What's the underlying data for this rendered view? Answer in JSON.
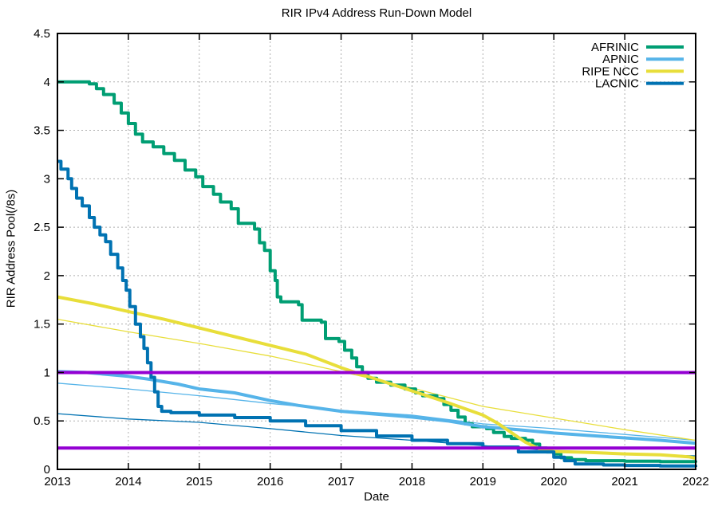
{
  "chart_data": {
    "type": "line",
    "title": "RIR IPv4 Address Run-Down Model",
    "xlabel": "Date",
    "ylabel": "RIR Address Pool(/8s)",
    "xlim": [
      2013,
      2022
    ],
    "ylim": [
      0,
      4.5
    ],
    "x_ticks": [
      2013,
      2014,
      2015,
      2016,
      2017,
      2018,
      2019,
      2020,
      2021,
      2022
    ],
    "y_ticks": [
      0,
      0.5,
      1,
      1.5,
      2,
      2.5,
      3,
      3.5,
      4,
      4.5
    ],
    "grid": true,
    "legend_position": "top-right-inside",
    "legend": [
      "AFRINIC",
      "APNIC",
      "RIPE NCC",
      "LACNIC"
    ],
    "colors": {
      "AFRINIC": "#009e73",
      "APNIC": "#56b4e9",
      "RIPE NCC": "#e8de3a",
      "LACNIC": "#0072b2",
      "threshold": "#9400d3",
      "grid": "#b0b0b0"
    },
    "reference_lines": [
      {
        "name": "threshold-upper",
        "y": 1.0,
        "color": "#9400d3"
      },
      {
        "name": "threshold-lower",
        "y": 0.22,
        "color": "#9400d3"
      }
    ],
    "series": [
      {
        "name": "AFRINIC",
        "role": "actual",
        "color": "#009e73",
        "width": 4,
        "step": true,
        "points": [
          [
            2013.0,
            4.0
          ],
          [
            2013.45,
            3.98
          ],
          [
            2013.55,
            3.93
          ],
          [
            2013.65,
            3.87
          ],
          [
            2013.8,
            3.78
          ],
          [
            2013.9,
            3.68
          ],
          [
            2014.0,
            3.57
          ],
          [
            2014.1,
            3.46
          ],
          [
            2014.2,
            3.38
          ],
          [
            2014.35,
            3.33
          ],
          [
            2014.5,
            3.26
          ],
          [
            2014.65,
            3.19
          ],
          [
            2014.8,
            3.09
          ],
          [
            2014.95,
            3.02
          ],
          [
            2015.05,
            2.92
          ],
          [
            2015.2,
            2.84
          ],
          [
            2015.3,
            2.76
          ],
          [
            2015.45,
            2.69
          ],
          [
            2015.55,
            2.54
          ],
          [
            2015.78,
            2.48
          ],
          [
            2015.85,
            2.34
          ],
          [
            2015.92,
            2.26
          ],
          [
            2016.0,
            2.05
          ],
          [
            2016.07,
            1.95
          ],
          [
            2016.1,
            1.78
          ],
          [
            2016.15,
            1.73
          ],
          [
            2016.4,
            1.7
          ],
          [
            2016.45,
            1.54
          ],
          [
            2016.72,
            1.52
          ],
          [
            2016.78,
            1.35
          ],
          [
            2016.97,
            1.32
          ],
          [
            2017.05,
            1.23
          ],
          [
            2017.15,
            1.15
          ],
          [
            2017.22,
            1.06
          ],
          [
            2017.3,
            1.0
          ],
          [
            2017.38,
            0.94
          ],
          [
            2017.5,
            0.9
          ],
          [
            2017.7,
            0.87
          ],
          [
            2017.9,
            0.83
          ],
          [
            2018.05,
            0.79
          ],
          [
            2018.15,
            0.76
          ],
          [
            2018.35,
            0.73
          ],
          [
            2018.45,
            0.67
          ],
          [
            2018.55,
            0.61
          ],
          [
            2018.65,
            0.54
          ],
          [
            2018.75,
            0.47
          ],
          [
            2018.85,
            0.44
          ],
          [
            2019.05,
            0.42
          ],
          [
            2019.15,
            0.38
          ],
          [
            2019.3,
            0.34
          ],
          [
            2019.4,
            0.32
          ],
          [
            2019.6,
            0.3
          ],
          [
            2019.7,
            0.26
          ],
          [
            2019.8,
            0.22
          ],
          [
            2019.9,
            0.18
          ],
          [
            2020.0,
            0.16
          ],
          [
            2020.1,
            0.12
          ],
          [
            2020.25,
            0.1
          ],
          [
            2020.45,
            0.09
          ],
          [
            2021.0,
            0.085
          ],
          [
            2021.5,
            0.08
          ],
          [
            2022.0,
            0.07
          ]
        ]
      },
      {
        "name": "APNIC",
        "role": "actual",
        "color": "#56b4e9",
        "width": 4,
        "step": false,
        "points": [
          [
            2013,
            1.01
          ],
          [
            2013.4,
            1.0
          ],
          [
            2014,
            0.96
          ],
          [
            2014.3,
            0.93
          ],
          [
            2014.7,
            0.88
          ],
          [
            2015,
            0.83
          ],
          [
            2015.5,
            0.79
          ],
          [
            2016,
            0.71
          ],
          [
            2016.4,
            0.66
          ],
          [
            2017,
            0.6
          ],
          [
            2017.5,
            0.57
          ],
          [
            2018,
            0.54
          ],
          [
            2018.5,
            0.5
          ],
          [
            2019,
            0.44
          ],
          [
            2019.5,
            0.41
          ],
          [
            2020,
            0.375
          ],
          [
            2020.5,
            0.35
          ],
          [
            2021,
            0.325
          ],
          [
            2021.5,
            0.3
          ],
          [
            2022,
            0.27
          ]
        ]
      },
      {
        "name": "RIPE NCC",
        "role": "actual",
        "color": "#e8de3a",
        "width": 4,
        "step": false,
        "points": [
          [
            2013,
            1.78
          ],
          [
            2013.5,
            1.71
          ],
          [
            2014,
            1.63
          ],
          [
            2014.5,
            1.55
          ],
          [
            2015,
            1.46
          ],
          [
            2015.5,
            1.37
          ],
          [
            2016,
            1.28
          ],
          [
            2016.5,
            1.19
          ],
          [
            2017,
            1.05
          ],
          [
            2017.2,
            1.0
          ],
          [
            2017.5,
            0.93
          ],
          [
            2018,
            0.81
          ],
          [
            2018.5,
            0.69
          ],
          [
            2019,
            0.56
          ],
          [
            2019.2,
            0.48
          ],
          [
            2019.4,
            0.38
          ],
          [
            2019.6,
            0.28
          ],
          [
            2019.8,
            0.21
          ],
          [
            2020,
            0.185
          ],
          [
            2020.5,
            0.175
          ],
          [
            2021,
            0.16
          ],
          [
            2021.5,
            0.15
          ],
          [
            2021.9,
            0.13
          ],
          [
            2022,
            0.115
          ]
        ]
      },
      {
        "name": "LACNIC",
        "role": "actual",
        "color": "#0072b2",
        "width": 4,
        "step": true,
        "points": [
          [
            2013.0,
            3.18
          ],
          [
            2013.05,
            3.1
          ],
          [
            2013.15,
            3.0
          ],
          [
            2013.2,
            2.9
          ],
          [
            2013.27,
            2.8
          ],
          [
            2013.35,
            2.72
          ],
          [
            2013.45,
            2.6
          ],
          [
            2013.52,
            2.5
          ],
          [
            2013.6,
            2.42
          ],
          [
            2013.68,
            2.35
          ],
          [
            2013.75,
            2.22
          ],
          [
            2013.85,
            2.08
          ],
          [
            2013.92,
            1.95
          ],
          [
            2013.97,
            1.85
          ],
          [
            2014.02,
            1.68
          ],
          [
            2014.1,
            1.5
          ],
          [
            2014.17,
            1.37
          ],
          [
            2014.22,
            1.25
          ],
          [
            2014.27,
            1.1
          ],
          [
            2014.32,
            0.95
          ],
          [
            2014.37,
            0.8
          ],
          [
            2014.42,
            0.65
          ],
          [
            2014.47,
            0.6
          ],
          [
            2014.6,
            0.585
          ],
          [
            2015.0,
            0.56
          ],
          [
            2015.5,
            0.535
          ],
          [
            2016.0,
            0.5
          ],
          [
            2016.5,
            0.45
          ],
          [
            2017.0,
            0.4
          ],
          [
            2017.5,
            0.345
          ],
          [
            2018.0,
            0.3
          ],
          [
            2018.5,
            0.265
          ],
          [
            2019.0,
            0.23
          ],
          [
            2019.5,
            0.18
          ],
          [
            2020.0,
            0.125
          ],
          [
            2020.15,
            0.09
          ],
          [
            2020.3,
            0.055
          ],
          [
            2020.7,
            0.045
          ],
          [
            2021.0,
            0.04
          ],
          [
            2021.5,
            0.035
          ],
          [
            2022.0,
            0.025
          ]
        ]
      },
      {
        "name": "APNIC",
        "role": "model",
        "color": "#56b4e9",
        "width": 1.3,
        "step": false,
        "points": [
          [
            2013,
            0.89
          ],
          [
            2014,
            0.83
          ],
          [
            2015,
            0.76
          ],
          [
            2016,
            0.68
          ],
          [
            2017,
            0.61
          ],
          [
            2018,
            0.56
          ],
          [
            2019,
            0.47
          ],
          [
            2020,
            0.42
          ],
          [
            2021,
            0.36
          ],
          [
            2022,
            0.3
          ]
        ]
      },
      {
        "name": "RIPE NCC",
        "role": "model",
        "color": "#e8de3a",
        "width": 1.3,
        "step": false,
        "points": [
          [
            2013,
            1.55
          ],
          [
            2014,
            1.42
          ],
          [
            2015,
            1.3
          ],
          [
            2016,
            1.17
          ],
          [
            2017,
            1.01
          ],
          [
            2018,
            0.84
          ],
          [
            2019,
            0.65
          ],
          [
            2020,
            0.53
          ],
          [
            2021,
            0.41
          ],
          [
            2022,
            0.3
          ]
        ]
      },
      {
        "name": "LACNIC",
        "role": "model",
        "color": "#0072b2",
        "width": 1.3,
        "step": false,
        "points": [
          [
            2013,
            0.575
          ],
          [
            2014,
            0.52
          ],
          [
            2015,
            0.485
          ],
          [
            2016,
            0.42
          ],
          [
            2017,
            0.35
          ],
          [
            2018,
            0.3
          ],
          [
            2019,
            0.245
          ],
          [
            2020,
            0.19
          ],
          [
            2021,
            0.16
          ],
          [
            2022,
            0.14
          ]
        ]
      }
    ]
  }
}
